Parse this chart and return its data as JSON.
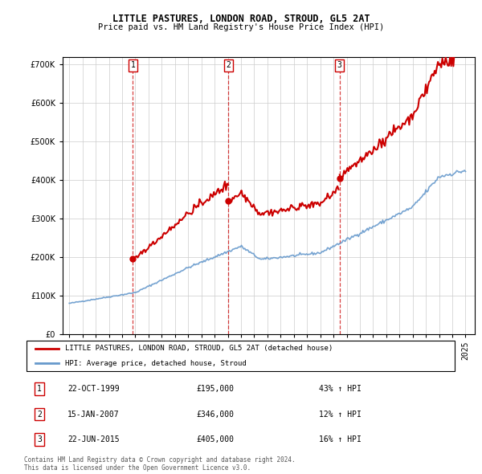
{
  "title": "LITTLE PASTURES, LONDON ROAD, STROUD, GL5 2AT",
  "subtitle": "Price paid vs. HM Land Registry's House Price Index (HPI)",
  "legend_line1": "LITTLE PASTURES, LONDON ROAD, STROUD, GL5 2AT (detached house)",
  "legend_line2": "HPI: Average price, detached house, Stroud",
  "table_rows": [
    {
      "num": 1,
      "date_str": "22-OCT-1999",
      "price_str": "£195,000",
      "pct_str": "43% ↑ HPI"
    },
    {
      "num": 2,
      "date_str": "15-JAN-2007",
      "price_str": "£346,000",
      "pct_str": "12% ↑ HPI"
    },
    {
      "num": 3,
      "date_str": "22-JUN-2015",
      "price_str": "£405,000",
      "pct_str": "16% ↑ HPI"
    }
  ],
  "footer": "Contains HM Land Registry data © Crown copyright and database right 2024.\nThis data is licensed under the Open Government Licence v3.0.",
  "red_color": "#cc0000",
  "blue_color": "#6699cc",
  "ylim": [
    0,
    720000
  ],
  "yticks": [
    0,
    100000,
    200000,
    300000,
    400000,
    500000,
    600000,
    700000
  ],
  "background_color": "#ffffff",
  "grid_color": "#cccccc",
  "trans_years": [
    1999.81,
    2007.04,
    2015.47
  ],
  "trans_prices": [
    195000,
    346000,
    405000
  ]
}
